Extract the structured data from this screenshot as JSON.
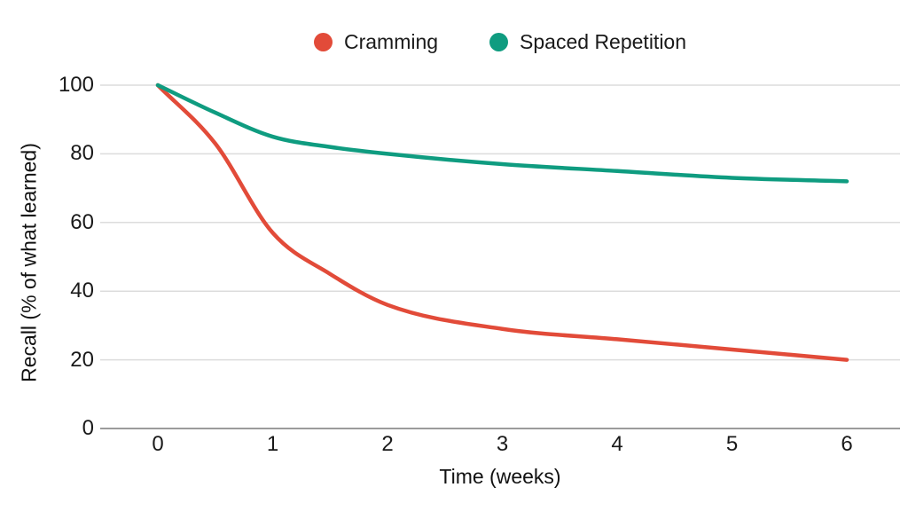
{
  "chart_data": {
    "type": "line",
    "x": [
      0,
      0.5,
      1,
      1.5,
      2,
      3,
      4,
      5,
      6
    ],
    "series": [
      {
        "name": "Cramming",
        "color": "#E24B39",
        "values": [
          100,
          83,
          57,
          45,
          36,
          29,
          26,
          23,
          20
        ]
      },
      {
        "name": "Spaced Repetition",
        "color": "#0F9C80",
        "values": [
          100,
          92,
          85,
          82,
          80,
          77,
          75,
          73,
          72
        ]
      }
    ],
    "title": "",
    "xlabel": "Time (weeks)",
    "ylabel": "Recall (% of what learned)",
    "xlim": [
      0,
      6
    ],
    "ylim": [
      0,
      100
    ],
    "x_ticks": [
      "0",
      "1",
      "2",
      "3",
      "4",
      "5",
      "6"
    ],
    "y_ticks": [
      "0",
      "20",
      "40",
      "60",
      "80",
      "100"
    ],
    "grid": "horizontal-on",
    "legend_position": "top-center",
    "colors": {
      "background": "#ffffff",
      "gridline": "#dcdcdc",
      "axis_line": "#9b9b9b",
      "text": "#1a1a1a"
    }
  }
}
